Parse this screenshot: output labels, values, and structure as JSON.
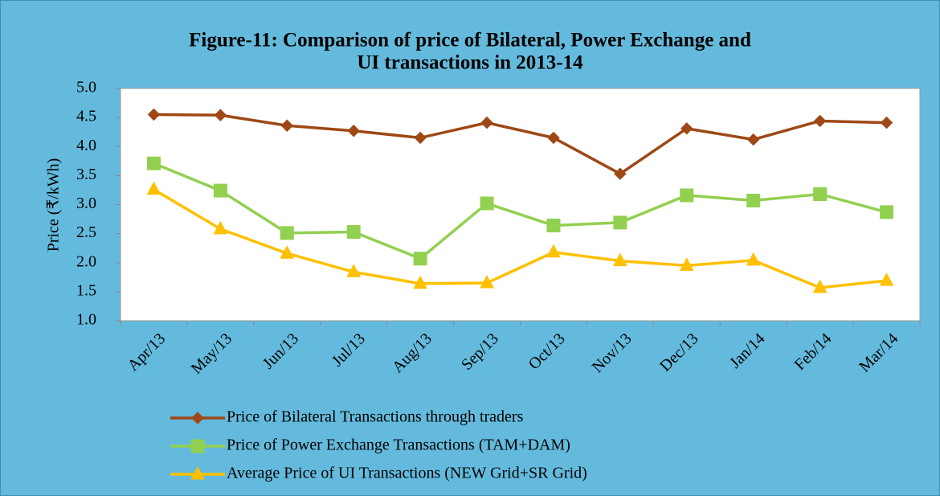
{
  "chart_data": {
    "type": "line",
    "title_lines": [
      "Figure-11: Comparison  of price of Bilateral, Power Exchange and",
      "UI transactions in 2013-14"
    ],
    "y_label": "Price (₹/kWh)",
    "categories": [
      "Apr/13",
      "May/13",
      "Jun/13",
      "Jul/13",
      "Aug/13",
      "Sep/13",
      "Oct/13",
      "Nov/13",
      "Dec/13",
      "Jan/14",
      "Feb/14",
      "Mar/14"
    ],
    "series": [
      {
        "name": "Price of Bilateral Transactions through traders",
        "color": "#9E4815",
        "marker": "diamond",
        "values": [
          4.55,
          4.54,
          4.36,
          4.27,
          4.15,
          4.41,
          4.15,
          3.53,
          4.31,
          4.12,
          4.44,
          4.41
        ]
      },
      {
        "name": "Price of Power Exchange Transactions (TAM+DAM)",
        "color": "#92D050",
        "marker": "square",
        "values": [
          3.71,
          3.24,
          2.51,
          2.53,
          2.07,
          3.02,
          2.64,
          2.69,
          3.16,
          3.07,
          3.18,
          2.87
        ]
      },
      {
        "name": "Average Price of UI Transactions (NEW Grid+SR Grid)",
        "color": "#FFC000",
        "marker": "triangle",
        "values": [
          3.26,
          2.58,
          2.16,
          1.84,
          1.64,
          1.65,
          2.18,
          2.03,
          1.95,
          2.04,
          1.57,
          1.69
        ]
      }
    ],
    "ylim": [
      1,
      5
    ],
    "yticks": [
      {
        "value": 1,
        "label": "1.0"
      },
      1.5,
      {
        "value": 2,
        "label": "2.0"
      },
      2.5,
      {
        "value": 3,
        "label": "3.0"
      },
      3.5,
      {
        "value": 4,
        "label": "4.0"
      },
      4.5,
      {
        "value": 5,
        "label": "5.0"
      }
    ],
    "grid": false,
    "legend": "bottom"
  }
}
